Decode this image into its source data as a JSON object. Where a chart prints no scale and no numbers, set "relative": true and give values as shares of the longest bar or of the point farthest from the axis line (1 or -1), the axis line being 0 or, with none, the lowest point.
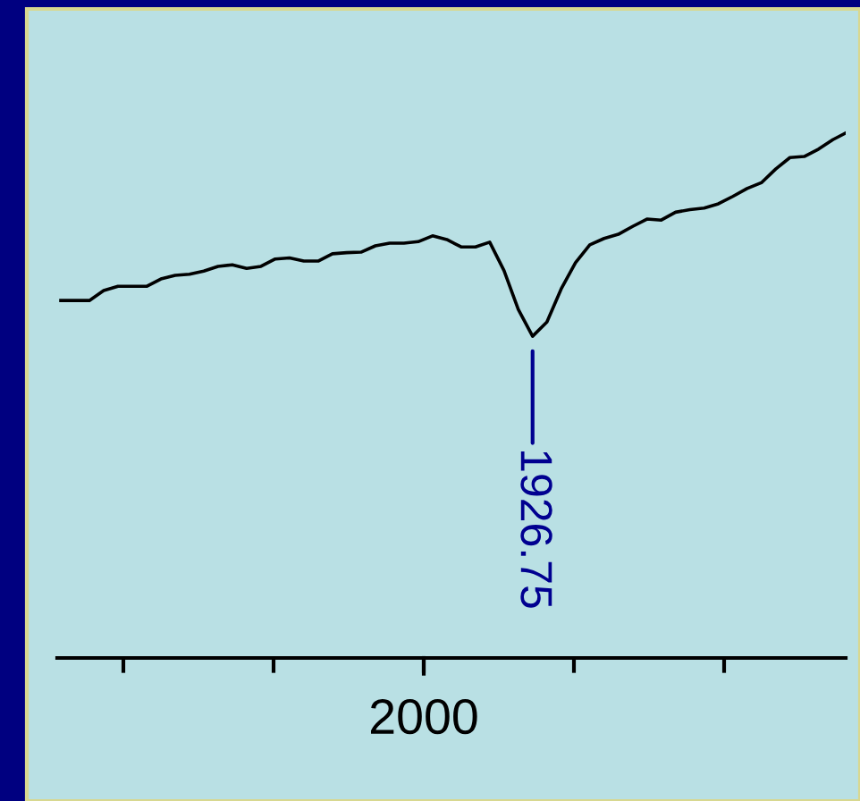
{
  "chart_data": {
    "type": "line",
    "relative": true,
    "line_style": "solid",
    "annotations": [
      "1926.75",
      "2000"
    ],
    "categories": [
      null,
      null,
      null,
      null,
      null,
      null,
      null,
      null,
      null,
      null,
      null,
      null,
      null,
      null,
      null,
      null,
      null,
      null,
      null,
      null,
      null,
      null,
      null,
      null,
      null,
      null,
      null,
      null,
      null,
      null,
      null,
      null,
      null,
      null,
      null,
      null,
      null,
      null,
      null,
      null,
      null,
      null,
      null,
      null,
      null,
      null,
      null,
      null,
      null,
      null,
      null,
      null,
      null,
      null,
      null,
      null
    ],
    "series": [
      {
        "color": "#000000",
        "values": [
          0.68,
          0.68,
          0.68,
          0.699,
          0.707,
          0.707,
          0.707,
          0.721,
          0.728,
          0.73,
          0.736,
          0.745,
          0.748,
          0.741,
          0.745,
          0.759,
          0.761,
          0.755,
          0.755,
          0.769,
          0.771,
          0.772,
          0.784,
          0.789,
          0.789,
          0.792,
          0.803,
          0.796,
          0.782,
          0.782,
          0.791,
          0.737,
          0.663,
          0.612,
          0.639,
          0.702,
          0.752,
          0.786,
          0.798,
          0.806,
          0.821,
          0.835,
          0.833,
          0.848,
          0.853,
          0.856,
          0.864,
          0.878,
          0.893,
          0.904,
          0.93,
          0.952,
          0.954,
          0.968,
          0.986,
          1.0
        ]
      }
    ]
  }
}
